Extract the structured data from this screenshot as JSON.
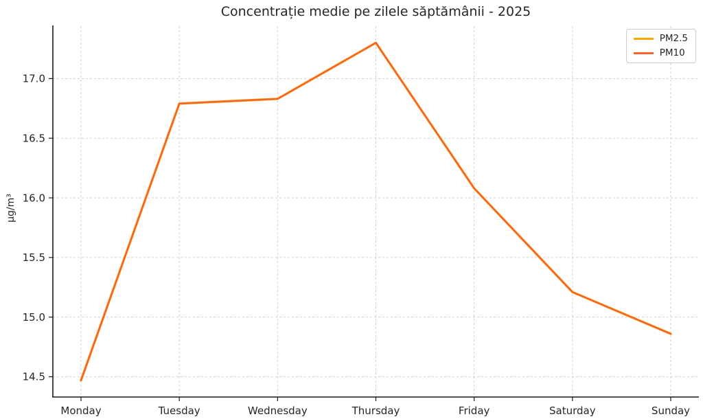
{
  "chart_data": {
    "type": "line",
    "title": "Concentrație medie pe zilele săptămânii - 2025",
    "xlabel": "",
    "ylabel": "µg/m³",
    "categories": [
      "Monday",
      "Tuesday",
      "Wednesday",
      "Thursday",
      "Friday",
      "Saturday",
      "Sunday"
    ],
    "series": [
      {
        "name": "PM2.5",
        "color": "#ffa600",
        "values": [
          14.47,
          16.79,
          16.83,
          17.3,
          16.08,
          15.21,
          14.86
        ]
      },
      {
        "name": "PM10",
        "color": "#f4642d",
        "values": [
          14.47,
          16.79,
          16.83,
          17.3,
          16.08,
          15.21,
          14.86
        ]
      }
    ],
    "yticks": [
      14.5,
      15.0,
      15.5,
      16.0,
      16.5,
      17.0
    ],
    "ylim": [
      14.33,
      17.44
    ],
    "grid": true,
    "grid_style": "dashed",
    "legend_position": "top-right",
    "note": "PM2.5 line lies almost exactly underneath PM10 line"
  }
}
